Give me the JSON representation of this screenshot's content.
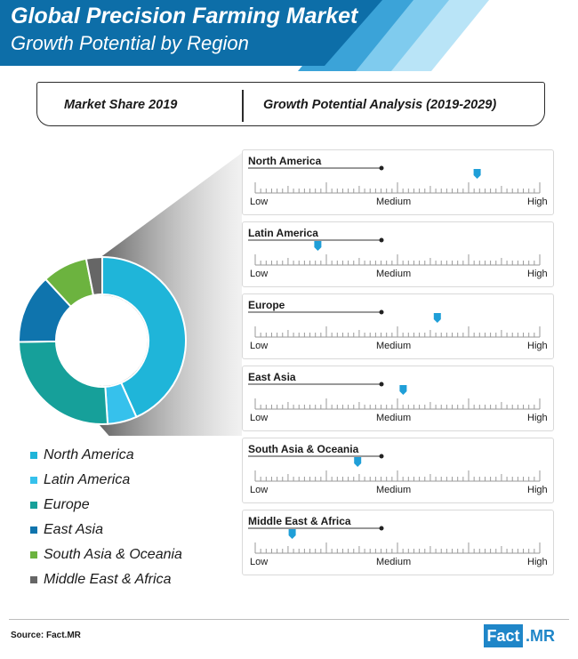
{
  "header": {
    "title": "Global Precision Farming Market",
    "subtitle": "Growth Potential by Region"
  },
  "sections": {
    "left_label": "Market Share 2019",
    "right_label": "Growth Potential Analysis (2019-2029)"
  },
  "colors": {
    "header_blue": "#0d6ea8",
    "header_light1": "#3ba3d8",
    "header_light2": "#7fcbee",
    "header_light3": "#b9e4f7",
    "marker": "#1f9fd8",
    "tick": "#9a9a9a"
  },
  "chart_data": [
    {
      "type": "pie",
      "variant": "donut",
      "categories": [
        "North America",
        "Latin America",
        "Europe",
        "East Asia",
        "South Asia & Oceania",
        "Middle East & Africa"
      ],
      "values": [
        42,
        5.5,
        25,
        13,
        8.5,
        3
      ],
      "colors": [
        "#1fb5d9",
        "#36c1ec",
        "#16a09a",
        "#0f74ad",
        "#6cb33f",
        "#666666"
      ],
      "legend_position": "bottom-left"
    },
    {
      "type": "scatter",
      "variant": "gauge-scale",
      "scale_labels": {
        "low": "Low",
        "medium": "Medium",
        "high": "High"
      },
      "xlim": [
        0,
        100
      ],
      "regions": [
        {
          "name": "North America",
          "value": 78
        },
        {
          "name": "Latin America",
          "value": 22
        },
        {
          "name": "Europe",
          "value": 64
        },
        {
          "name": "East Asia",
          "value": 52
        },
        {
          "name": "South Asia & Oceania",
          "value": 36
        },
        {
          "name": "Middle East & Africa",
          "value": 13
        }
      ]
    }
  ],
  "footer": {
    "source": "Source: Fact.MR",
    "logo_left": "Fact",
    "logo_right": ".MR"
  }
}
